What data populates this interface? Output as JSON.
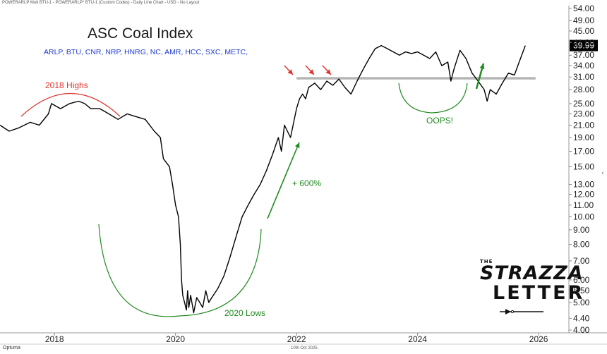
{
  "header_text": "POWERARLP Mult BTU-1 - POWERARLP* BTU-1 (Custom Codes) - Daily Line Chart - USD - No Layout",
  "footer": {
    "date": "10th Oct 2025",
    "brand": "Optuma"
  },
  "logo": {
    "line1": "THE",
    "line2": "STRAZZA",
    "line3": "LETTER"
  },
  "annotations": {
    "highs_2018": "2018 Highs",
    "lows_2020": "2020 Lows",
    "gain": "+ 600%",
    "oops": "OOPS!"
  },
  "colors": {
    "price_line": "#000000",
    "resistance_line": "#b5b5b5",
    "highs_arc": "#e0312b",
    "lows_arc": "#1f8a1f",
    "up_arrow": "#1f8a1f",
    "red_arrows": "#e0312b",
    "tickers_text": "#1f3bd0",
    "last_price_box": "#000000"
  },
  "chart_data": {
    "type": "line",
    "title": "ASC Coal Index",
    "subtitle": "ARLP, BTU, CNR, NRP,  HNRG, NC, AMR, HCC, SXC, METC,",
    "y_scale": "log",
    "ylim": [
      4.0,
      54.0
    ],
    "x_range": [
      2017.1,
      2026.5
    ],
    "x_ticks": [
      2018,
      2020,
      2022,
      2024,
      2026
    ],
    "y_ticks": [
      54.0,
      49.0,
      45.0,
      41.0,
      37.0,
      34.0,
      31.0,
      28.0,
      25.0,
      23.0,
      21.0,
      19.0,
      17.0,
      15.0,
      13.0,
      12.0,
      11.0,
      10.0,
      9.0,
      8.0,
      7.0,
      6.0,
      5.5,
      5.0,
      4.4,
      4.0
    ],
    "last_value": 39.99,
    "resistance_level": 30.7,
    "grid": false,
    "legend": "none",
    "series": [
      {
        "x": [
          2017.1,
          2017.25,
          2017.4,
          2017.6,
          2017.75,
          2017.9,
          2017.95,
          2018.1,
          2018.25,
          2018.4,
          2018.5,
          2018.6,
          2018.75,
          2018.9,
          2019.05,
          2019.2,
          2019.35,
          2019.5,
          2019.65,
          2019.75,
          2019.8,
          2019.9,
          2019.95,
          2020.0,
          2020.05,
          2020.08,
          2020.1,
          2020.12,
          2020.15,
          2020.18,
          2020.2,
          2020.22,
          2020.25,
          2020.3,
          2020.35,
          2020.4,
          2020.45,
          2020.5,
          2020.55,
          2020.6,
          2020.7,
          2020.8,
          2020.9,
          2021.0,
          2021.1,
          2021.2,
          2021.3,
          2021.4,
          2021.5,
          2021.6,
          2021.7,
          2021.75,
          2021.8,
          2021.9,
          2022.0,
          2022.05,
          2022.1,
          2022.15,
          2022.2,
          2022.3,
          2022.4,
          2022.5,
          2022.6,
          2022.7,
          2022.8,
          2022.9,
          2023.0,
          2023.1,
          2023.2,
          2023.3,
          2023.4,
          2023.5,
          2023.6,
          2023.7,
          2023.8,
          2023.9,
          2024.0,
          2024.1,
          2024.2,
          2024.3,
          2024.4,
          2024.5,
          2024.55,
          2024.6,
          2024.7,
          2024.8,
          2024.9,
          2025.0,
          2025.1,
          2025.15,
          2025.2,
          2025.3,
          2025.4,
          2025.5,
          2025.6,
          2025.7,
          2025.78
        ],
        "values": [
          21.0,
          20.0,
          20.5,
          21.5,
          21.0,
          23.0,
          25.0,
          24.0,
          25.0,
          25.5,
          25.0,
          24.0,
          24.0,
          23.0,
          22.0,
          23.0,
          22.5,
          22.0,
          20.0,
          19.0,
          16.0,
          15.0,
          13.0,
          11.0,
          10.0,
          8.0,
          6.0,
          5.3,
          5.0,
          4.7,
          5.5,
          4.8,
          5.3,
          4.6,
          5.2,
          5.0,
          4.8,
          5.5,
          5.0,
          5.2,
          5.6,
          6.2,
          7.2,
          8.5,
          10.0,
          11.0,
          12.0,
          13.0,
          14.5,
          16.5,
          19.0,
          17.0,
          21.0,
          19.0,
          24.0,
          26.0,
          27.0,
          26.0,
          28.5,
          29.5,
          28.0,
          30.0,
          29.0,
          30.5,
          28.5,
          27.0,
          30.0,
          33.0,
          36.0,
          39.0,
          40.0,
          39.0,
          38.0,
          37.0,
          38.0,
          37.5,
          38.0,
          37.0,
          36.0,
          38.0,
          34.0,
          35.0,
          30.0,
          33.0,
          38.5,
          36.0,
          32.0,
          30.0,
          28.0,
          25.5,
          28.0,
          27.0,
          29.5,
          32.0,
          31.5,
          36.0,
          39.99
        ]
      }
    ]
  }
}
